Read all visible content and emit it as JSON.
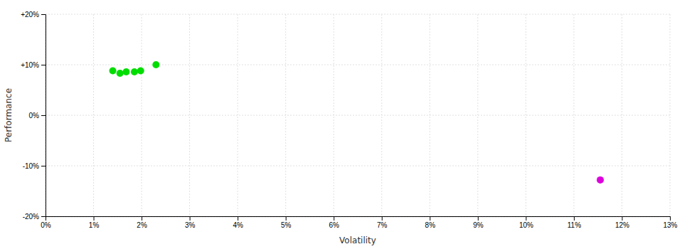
{
  "chart_data": {
    "type": "scatter",
    "xlabel": "Volatility",
    "ylabel": "Performance",
    "xlim": [
      0,
      0.13
    ],
    "ylim": [
      -0.2,
      0.2
    ],
    "xticks": [
      {
        "value": 0.0,
        "label": "0%"
      },
      {
        "value": 0.01,
        "label": "1%"
      },
      {
        "value": 0.02,
        "label": "2%"
      },
      {
        "value": 0.03,
        "label": "3%"
      },
      {
        "value": 0.04,
        "label": "4%"
      },
      {
        "value": 0.05,
        "label": "5%"
      },
      {
        "value": 0.06,
        "label": "6%"
      },
      {
        "value": 0.07,
        "label": "7%"
      },
      {
        "value": 0.08,
        "label": "8%"
      },
      {
        "value": 0.09,
        "label": "9%"
      },
      {
        "value": 0.1,
        "label": "10%"
      },
      {
        "value": 0.11,
        "label": "11%"
      },
      {
        "value": 0.12,
        "label": "12%"
      },
      {
        "value": 0.13,
        "label": "13%"
      }
    ],
    "yticks": [
      {
        "value": -0.2,
        "label": "-20%"
      },
      {
        "value": -0.1,
        "label": "-10%"
      },
      {
        "value": 0.0,
        "label": "0%"
      },
      {
        "value": 0.1,
        "label": "+10%"
      },
      {
        "value": 0.2,
        "label": "+20%"
      }
    ],
    "grid": true,
    "series": [
      {
        "color": "#00dd00",
        "x": [
          0.014,
          0.0155,
          0.0168,
          0.0185,
          0.0198,
          0.023
        ],
        "values": [
          0.088,
          0.083,
          0.086,
          0.086,
          0.088,
          0.1
        ]
      },
      {
        "color": "#dd00dd",
        "x": [
          0.1155
        ],
        "values": [
          -0.128
        ]
      }
    ]
  }
}
